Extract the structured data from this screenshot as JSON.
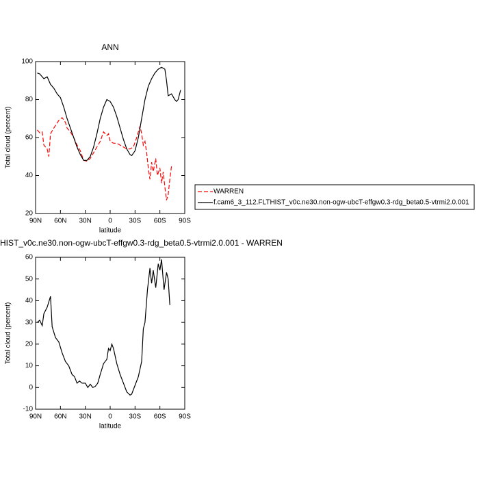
{
  "chart_data": [
    {
      "type": "line",
      "title": "ANN",
      "xlabel": "latitude",
      "ylabel": "Total cloud (percent)",
      "xlim": [
        90,
        -90
      ],
      "ylim": [
        20,
        100
      ],
      "xticks": [
        {
          "value": 90,
          "label": "90N"
        },
        {
          "value": 60,
          "label": "60N"
        },
        {
          "value": 30,
          "label": "30N"
        },
        0,
        {
          "value": -30,
          "label": "30S"
        },
        {
          "value": -60,
          "label": "60S"
        },
        {
          "value": -90,
          "label": "90S"
        }
      ],
      "yticks": [
        20,
        40,
        60,
        80,
        100
      ],
      "series": [
        {
          "name": "WARREN",
          "color": "#ff0000",
          "dash": true,
          "x": [
            88,
            85,
            82,
            80,
            76,
            74,
            72,
            68,
            65,
            62,
            58,
            54,
            52,
            48,
            44,
            40,
            36,
            32,
            28,
            24,
            20,
            16,
            12,
            8,
            6,
            4,
            2,
            0,
            -4,
            -8,
            -12,
            -16,
            -20,
            -24,
            -28,
            -32,
            -36,
            -38,
            -40,
            -42,
            -44,
            -46,
            -48,
            -50,
            -52,
            -55,
            -57,
            -60,
            -62,
            -64,
            -66,
            -68,
            -70,
            -72,
            -74
          ],
          "values": [
            64,
            62.5,
            63,
            56,
            54,
            50,
            62,
            65,
            67,
            69,
            70.5,
            68,
            65,
            63,
            60,
            56,
            53,
            48,
            47.5,
            49,
            52,
            55,
            58,
            63,
            62,
            61,
            62,
            58,
            57,
            57,
            56,
            55,
            54,
            54,
            55,
            60,
            66,
            62,
            56,
            58,
            52,
            44,
            38,
            47,
            42,
            49,
            40,
            44,
            36,
            42,
            34,
            27,
            30,
            38,
            45
          ]
        },
        {
          "name": "f.cam6_3_112.FLTHIST_v0c.ne30.non-ogw-ubcT-effgw0.3-rdg_beta0.5-vtrmi2.0.001",
          "color": "#000000",
          "dash": false,
          "x": [
            88,
            85,
            80,
            76,
            72,
            68,
            64,
            60,
            56,
            52,
            48,
            44,
            40,
            36,
            32,
            28,
            24,
            20,
            16,
            12,
            8,
            4,
            0,
            -4,
            -8,
            -12,
            -16,
            -20,
            -24,
            -26,
            -30,
            -34,
            -38,
            -42,
            -46,
            -50,
            -54,
            -58,
            -62,
            -66,
            -68,
            -70,
            -74,
            -78,
            -80,
            -82,
            -85
          ],
          "values": [
            94,
            93.5,
            91,
            92,
            88,
            86,
            83,
            81,
            76,
            70,
            65,
            60,
            55,
            51,
            48,
            48,
            50,
            55,
            62,
            70,
            76,
            80,
            79,
            76,
            71,
            65,
            59,
            54,
            51,
            50.5,
            53,
            60,
            70,
            80,
            87,
            91,
            94,
            96,
            97,
            96,
            90,
            82,
            83,
            80,
            79,
            80,
            85
          ]
        }
      ]
    },
    {
      "type": "line",
      "title": "HIST_v0c.ne30.non-ogw-ubcT-effgw0.3-rdg_beta0.5-vtrmi2.0.001 - WARREN",
      "xlabel": "latitude",
      "ylabel": "Total cloud (percent)",
      "xlim": [
        90,
        -90
      ],
      "ylim": [
        -10,
        60
      ],
      "xticks": [
        {
          "value": 90,
          "label": "90N"
        },
        {
          "value": 60,
          "label": "60N"
        },
        {
          "value": 30,
          "label": "30N"
        },
        0,
        {
          "value": -30,
          "label": "30S"
        },
        {
          "value": -60,
          "label": "60S"
        },
        {
          "value": -90,
          "label": "90S"
        }
      ],
      "yticks": [
        -10,
        0,
        10,
        20,
        30,
        40,
        50,
        60
      ],
      "color": "#000000",
      "x": [
        88,
        85,
        82,
        80,
        76,
        72,
        70,
        66,
        62,
        58,
        54,
        50,
        46,
        43,
        40,
        37,
        34,
        30,
        27,
        24,
        21,
        18,
        15,
        12,
        8,
        4,
        2,
        0,
        -2,
        -4,
        -8,
        -12,
        -16,
        -20,
        -24,
        -26,
        -30,
        -34,
        -38,
        -40,
        -42,
        -45,
        -48,
        -50,
        -52,
        -55,
        -58,
        -60,
        -62,
        -65,
        -68,
        -70,
        -72
      ],
      "values": [
        30,
        31,
        28.5,
        34,
        37,
        42,
        28,
        23,
        21,
        16,
        12,
        10,
        6,
        5,
        2,
        3,
        2,
        2,
        0,
        1.5,
        0,
        0.5,
        2,
        6,
        11,
        13,
        18,
        17,
        20,
        18,
        11,
        6,
        2,
        -2,
        -3.5,
        -3,
        1,
        5,
        12,
        27,
        30,
        45,
        55,
        48,
        54,
        46,
        57,
        54,
        59,
        45,
        53,
        50,
        38
      ]
    }
  ]
}
